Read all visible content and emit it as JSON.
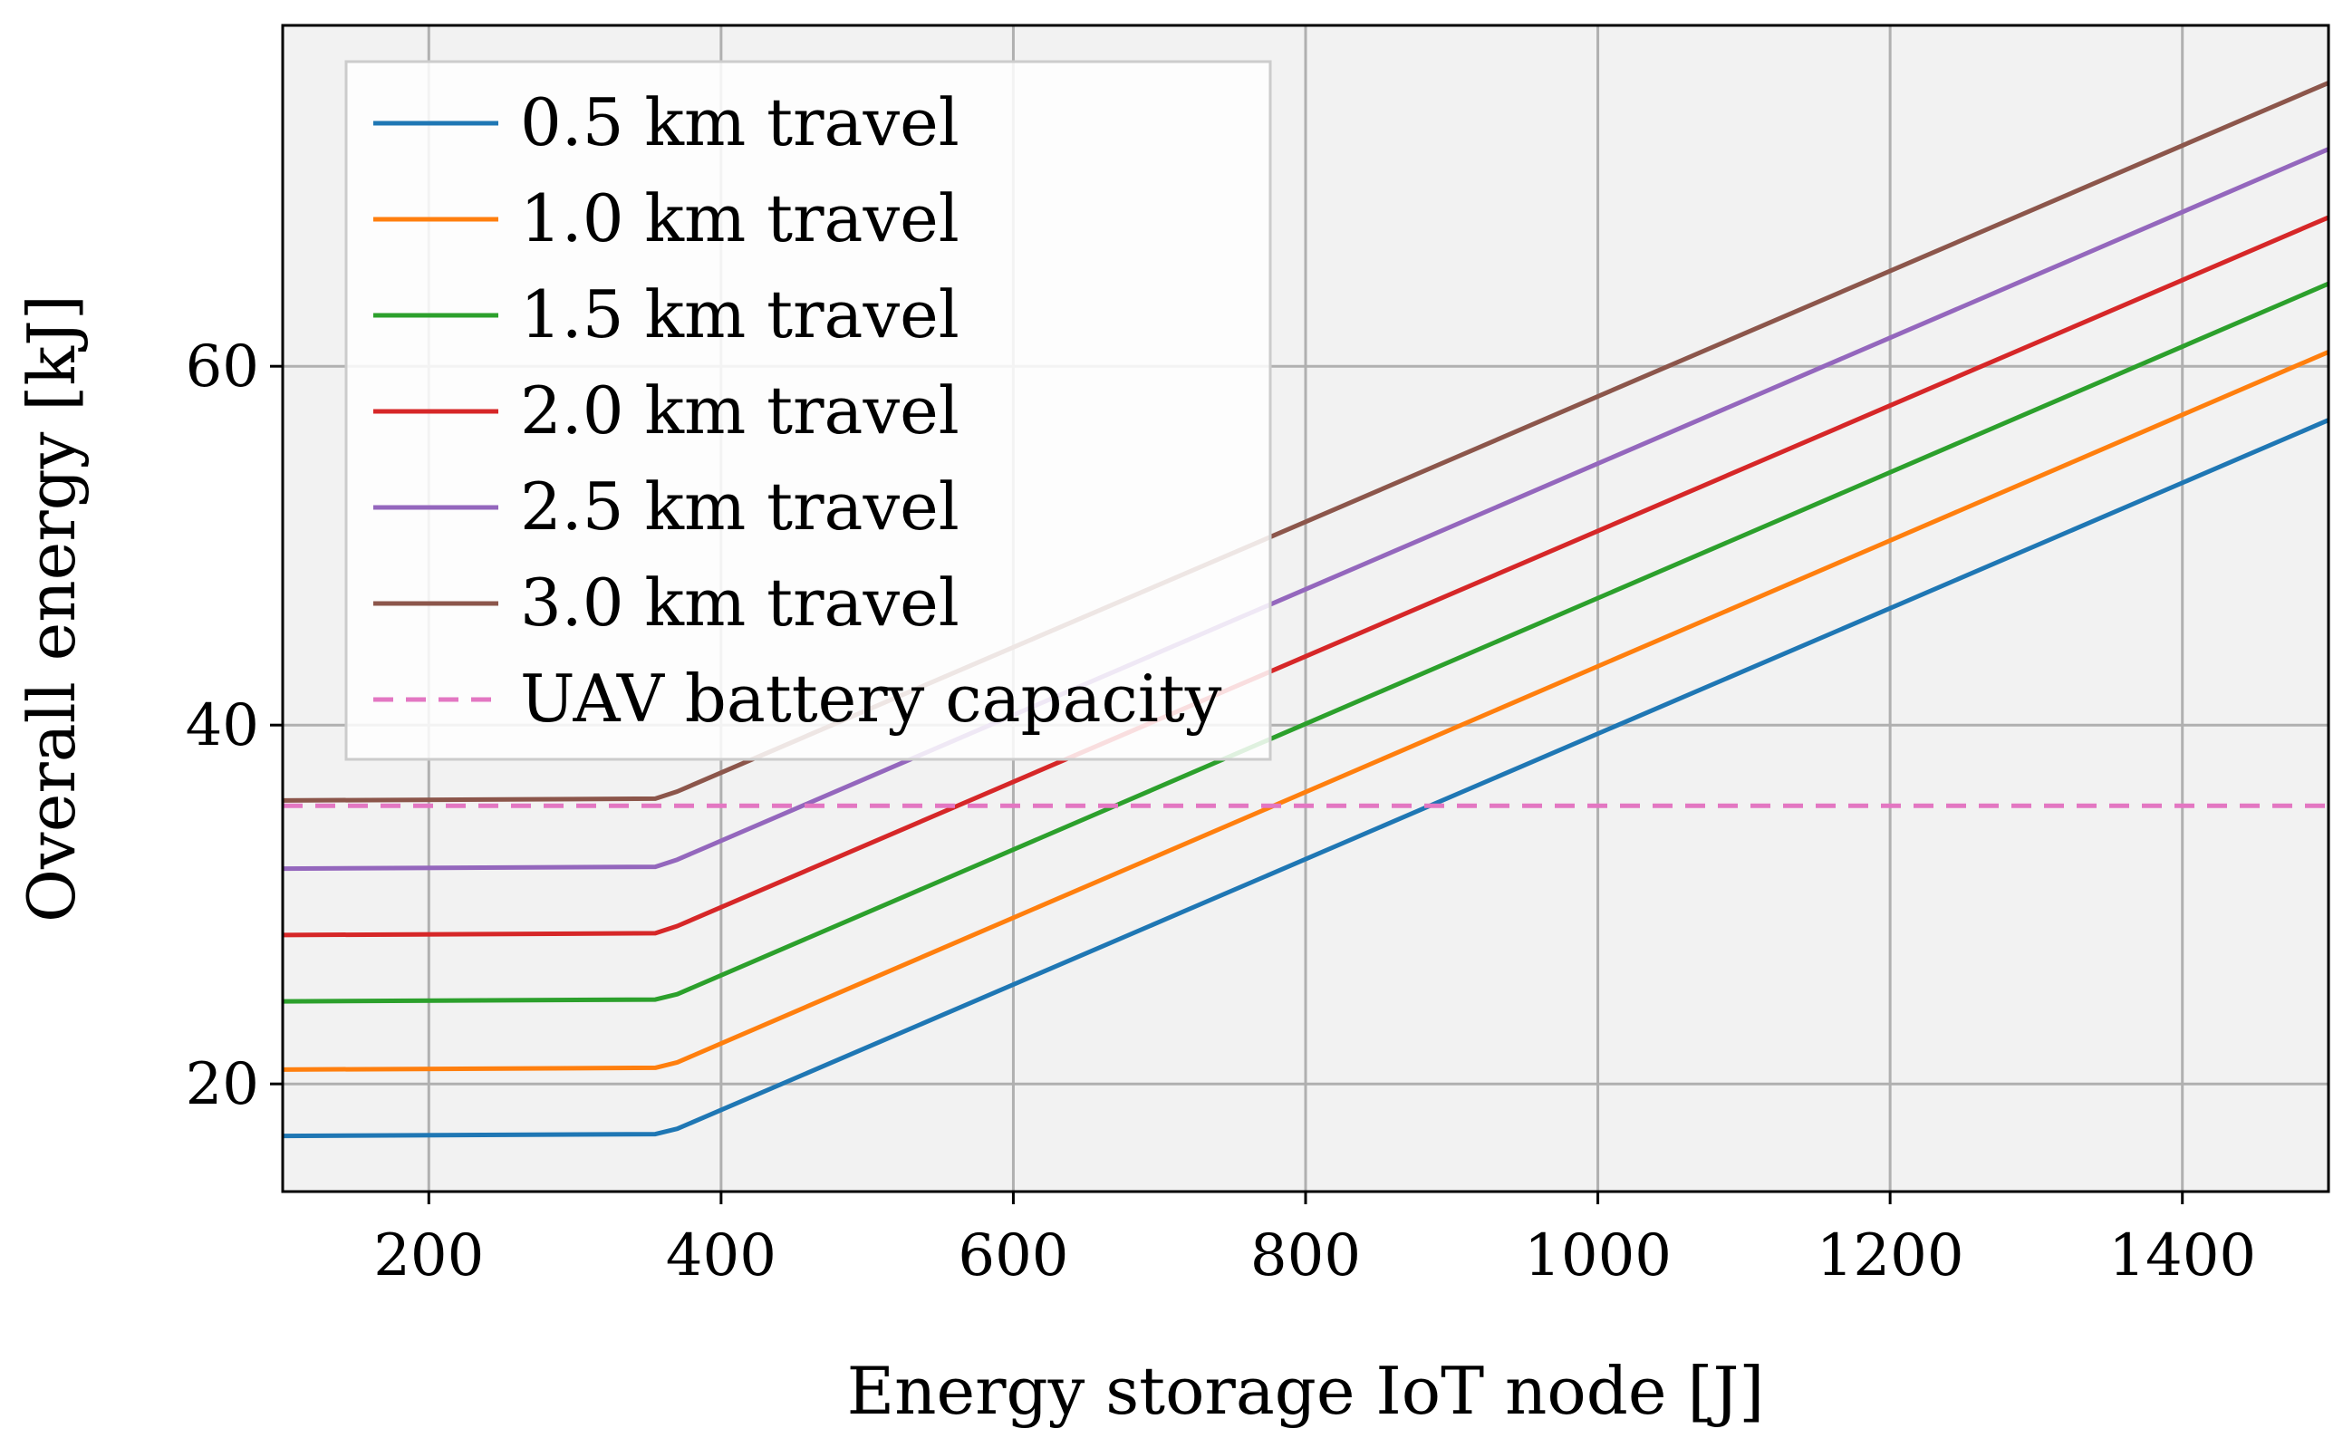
{
  "chart_data": {
    "type": "line",
    "title": "",
    "xlabel": "Energy storage IoT node [J]",
    "ylabel": "Overall energy [kJ]",
    "xlim": [
      100,
      1500
    ],
    "ylim": [
      14,
      79
    ],
    "xticks": [
      200,
      400,
      600,
      800,
      1000,
      1200,
      1400
    ],
    "yticks": [
      20,
      40,
      60
    ],
    "grid": true,
    "legend_position": "top-left",
    "background": "#f2f2f2",
    "series": [
      {
        "name": "0.5 km travel",
        "color": "#1f77b4",
        "dash": "solid",
        "x": [
          100,
          355,
          370,
          1500
        ],
        "y": [
          17.1,
          17.2,
          17.5,
          57.0
        ]
      },
      {
        "name": "1.0 km travel",
        "color": "#ff7f0e",
        "dash": "solid",
        "x": [
          100,
          355,
          370,
          1500
        ],
        "y": [
          20.8,
          20.9,
          21.2,
          60.8
        ]
      },
      {
        "name": "1.5 km travel",
        "color": "#2ca02c",
        "dash": "solid",
        "x": [
          100,
          355,
          370,
          1500
        ],
        "y": [
          24.6,
          24.7,
          25.0,
          64.6
        ]
      },
      {
        "name": "2.0 km travel",
        "color": "#d62728",
        "dash": "solid",
        "x": [
          100,
          355,
          370,
          1500
        ],
        "y": [
          28.3,
          28.4,
          28.8,
          68.3
        ]
      },
      {
        "name": "2.5 km travel",
        "color": "#9467bd",
        "dash": "solid",
        "x": [
          100,
          355,
          370,
          1500
        ],
        "y": [
          32.0,
          32.1,
          32.5,
          72.1
        ]
      },
      {
        "name": "3.0 km travel",
        "color": "#8c564b",
        "dash": "solid",
        "x": [
          100,
          355,
          370,
          1500
        ],
        "y": [
          35.8,
          35.9,
          36.3,
          75.8
        ]
      },
      {
        "name": "UAV battery capacity",
        "color": "#e377c2",
        "dash": "dashed",
        "x": [
          100,
          1500
        ],
        "y": [
          35.5,
          35.5
        ]
      }
    ]
  }
}
